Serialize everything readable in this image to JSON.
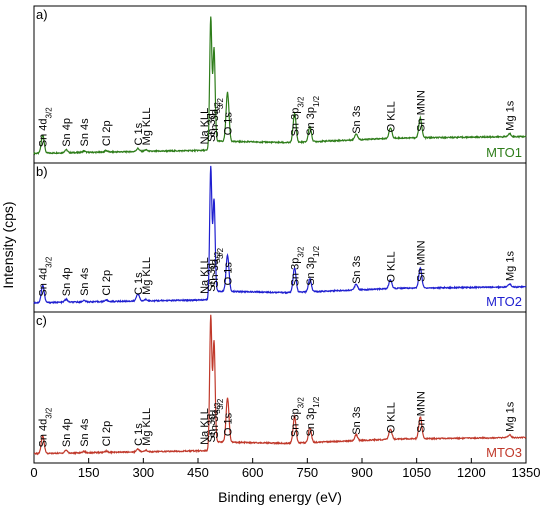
{
  "chart_data": {
    "type": "line",
    "xlabel": "Binding energy (eV)",
    "ylabel": "Intensity (cps)",
    "xlim": [
      0,
      1350
    ],
    "xticks": [
      0,
      150,
      300,
      450,
      600,
      750,
      900,
      1050,
      1200,
      1350
    ],
    "panels": [
      {
        "tag": "a)",
        "name": "MTO1",
        "color": "#2e7d1a",
        "baseline_profile": [
          [
            0,
            0.05
          ],
          [
            480,
            0.07
          ],
          [
            500,
            0.13
          ],
          [
            700,
            0.12
          ],
          [
            1000,
            0.15
          ],
          [
            1350,
            0.16
          ]
        ],
        "peaks": [
          [
            24,
            0.12
          ],
          [
            88,
            0.02
          ],
          [
            137,
            0.01
          ],
          [
            198,
            0.01
          ],
          [
            285,
            0.02
          ],
          [
            307,
            0.01
          ],
          [
            485,
            0.85
          ],
          [
            494,
            0.62
          ],
          [
            531,
            0.32
          ],
          [
            715,
            0.19
          ],
          [
            757,
            0.1
          ],
          [
            884,
            0.04
          ],
          [
            978,
            0.07
          ],
          [
            1060,
            0.13
          ],
          [
            1305,
            0.02
          ]
        ]
      },
      {
        "tag": "b)",
        "name": "MTO2",
        "color": "#1f1fd0",
        "baseline_profile": [
          [
            0,
            0.05
          ],
          [
            480,
            0.07
          ],
          [
            500,
            0.13
          ],
          [
            700,
            0.12
          ],
          [
            1000,
            0.15
          ],
          [
            1350,
            0.16
          ]
        ],
        "peaks": [
          [
            24,
            0.12
          ],
          [
            88,
            0.02
          ],
          [
            137,
            0.01
          ],
          [
            198,
            0.01
          ],
          [
            285,
            0.05
          ],
          [
            307,
            0.01
          ],
          [
            485,
            0.9
          ],
          [
            494,
            0.65
          ],
          [
            531,
            0.25
          ],
          [
            715,
            0.17
          ],
          [
            757,
            0.09
          ],
          [
            884,
            0.04
          ],
          [
            978,
            0.06
          ],
          [
            1060,
            0.14
          ],
          [
            1305,
            0.02
          ]
        ]
      },
      {
        "tag": "c)",
        "name": "MTO3",
        "color": "#c0392b",
        "baseline_profile": [
          [
            0,
            0.05
          ],
          [
            480,
            0.07
          ],
          [
            500,
            0.13
          ],
          [
            700,
            0.12
          ],
          [
            1000,
            0.15
          ],
          [
            1350,
            0.16
          ]
        ],
        "peaks": [
          [
            24,
            0.12
          ],
          [
            88,
            0.02
          ],
          [
            137,
            0.01
          ],
          [
            198,
            0.01
          ],
          [
            285,
            0.02
          ],
          [
            307,
            0.01
          ],
          [
            485,
            0.9
          ],
          [
            494,
            0.7
          ],
          [
            531,
            0.3
          ],
          [
            715,
            0.18
          ],
          [
            757,
            0.1
          ],
          [
            884,
            0.04
          ],
          [
            978,
            0.07
          ],
          [
            1060,
            0.15
          ],
          [
            1305,
            0.02
          ]
        ]
      }
    ],
    "annotations": [
      {
        "x": 24,
        "base": "Sn 4d",
        "sub": "3/2"
      },
      {
        "x": 88,
        "base": "Sn 4p"
      },
      {
        "x": 137,
        "base": "Sn 4s"
      },
      {
        "x": 198,
        "base": "Cl 2p"
      },
      {
        "x": 285,
        "base": "C 1s"
      },
      {
        "x": 307,
        "base": "Mg KLL"
      },
      {
        "x": 466,
        "base": "Na KLL"
      },
      {
        "x": 485,
        "base": "Sn 3d",
        "sub": "5/2"
      },
      {
        "x": 494,
        "base": "Sn 3d",
        "sub": "3/2"
      },
      {
        "x": 531,
        "base": "O 1s"
      },
      {
        "x": 715,
        "base": "Sn 3p",
        "sub": "3/2"
      },
      {
        "x": 757,
        "base": "Sn 3p",
        "sub": "1/2"
      },
      {
        "x": 884,
        "base": "Sn 3s"
      },
      {
        "x": 978,
        "base": "O KLL"
      },
      {
        "x": 1060,
        "base": "Sn MNN"
      },
      {
        "x": 1305,
        "base": "Mg 1s"
      }
    ]
  }
}
